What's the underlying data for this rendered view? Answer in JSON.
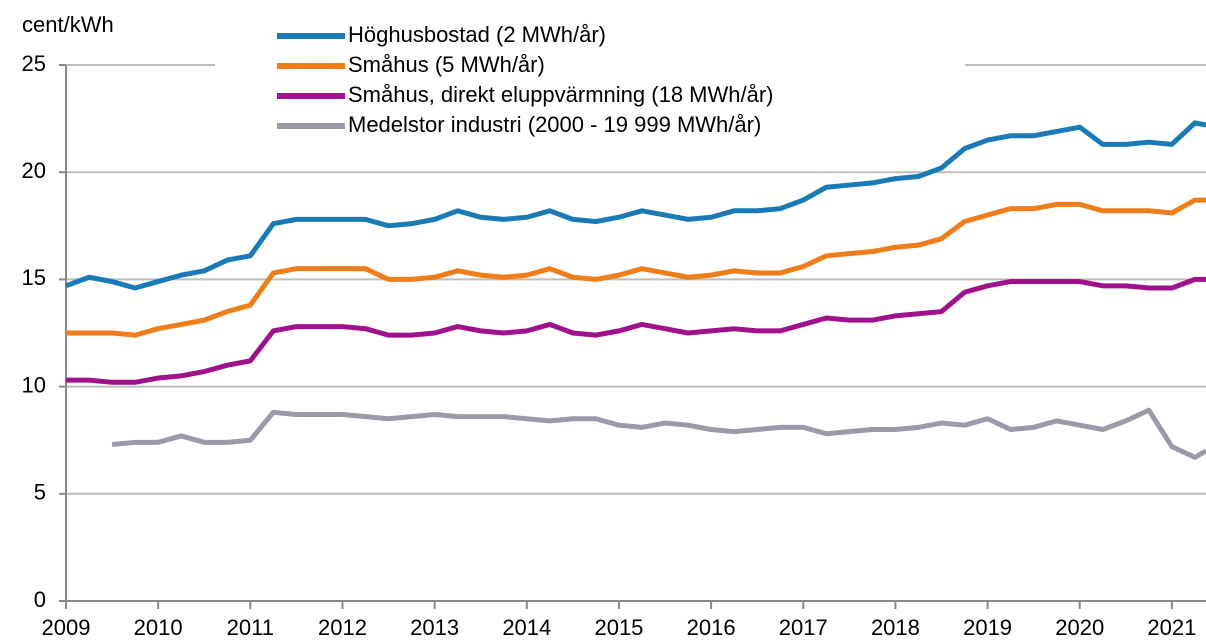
{
  "chart_data": {
    "type": "line",
    "y_label": "cent/kWh",
    "x": [
      2009,
      2009.25,
      2009.5,
      2009.75,
      2010,
      2010.25,
      2010.5,
      2010.75,
      2011,
      2011.25,
      2011.5,
      2011.75,
      2012,
      2012.25,
      2012.5,
      2012.75,
      2013,
      2013.25,
      2013.5,
      2013.75,
      2014,
      2014.25,
      2014.5,
      2014.75,
      2015,
      2015.25,
      2015.5,
      2015.75,
      2016,
      2016.25,
      2016.5,
      2016.75,
      2017,
      2017.25,
      2017.5,
      2017.75,
      2018,
      2018.25,
      2018.5,
      2018.75,
      2019,
      2019.25,
      2019.5,
      2019.75,
      2020,
      2020.25,
      2020.5,
      2020.75,
      2021,
      2021.25,
      2021.37
    ],
    "series": [
      {
        "name": "Höghusbostad (2 MWh/år)",
        "color": "#1a7ab5",
        "values": [
          14.7,
          15.1,
          14.9,
          14.6,
          14.9,
          15.2,
          15.4,
          15.9,
          16.1,
          17.6,
          17.8,
          17.8,
          17.8,
          17.8,
          17.5,
          17.6,
          17.8,
          18.2,
          17.9,
          17.8,
          17.9,
          18.2,
          17.8,
          17.7,
          17.9,
          18.2,
          18.0,
          17.8,
          17.9,
          18.2,
          18.2,
          18.3,
          18.7,
          19.3,
          19.4,
          19.5,
          19.7,
          19.8,
          20.2,
          21.1,
          21.5,
          21.7,
          21.7,
          21.9,
          22.1,
          21.3,
          21.3,
          21.4,
          21.3,
          22.3,
          22.2
        ]
      },
      {
        "name": "Småhus (5 MWh/år)",
        "color": "#ef7d1a",
        "values": [
          12.5,
          12.5,
          12.5,
          12.4,
          12.7,
          12.9,
          13.1,
          13.5,
          13.8,
          15.3,
          15.5,
          15.5,
          15.5,
          15.5,
          15.0,
          15.0,
          15.1,
          15.4,
          15.2,
          15.1,
          15.2,
          15.5,
          15.1,
          15.0,
          15.2,
          15.5,
          15.3,
          15.1,
          15.2,
          15.4,
          15.3,
          15.3,
          15.6,
          16.1,
          16.2,
          16.3,
          16.5,
          16.6,
          16.9,
          17.7,
          18.0,
          18.3,
          18.3,
          18.5,
          18.5,
          18.2,
          18.2,
          18.2,
          18.1,
          18.7,
          18.7
        ]
      },
      {
        "name": "Småhus, direkt eluppvärmning (18 MWh/år)",
        "color": "#a0128c",
        "values": [
          10.3,
          10.3,
          10.2,
          10.2,
          10.4,
          10.5,
          10.7,
          11.0,
          11.2,
          12.6,
          12.8,
          12.8,
          12.8,
          12.7,
          12.4,
          12.4,
          12.5,
          12.8,
          12.6,
          12.5,
          12.6,
          12.9,
          12.5,
          12.4,
          12.6,
          12.9,
          12.7,
          12.5,
          12.6,
          12.7,
          12.6,
          12.6,
          12.9,
          13.2,
          13.1,
          13.1,
          13.3,
          13.4,
          13.5,
          14.4,
          14.7,
          14.9,
          14.9,
          14.9,
          14.9,
          14.7,
          14.7,
          14.6,
          14.6,
          15.0,
          15.0
        ]
      },
      {
        "name": "Medelstor industri (2000 - 19 999 MWh/år)",
        "color": "#9c9aaa",
        "values": [
          null,
          null,
          7.3,
          7.4,
          7.4,
          7.7,
          7.4,
          7.4,
          7.5,
          8.8,
          8.7,
          8.7,
          8.7,
          8.6,
          8.5,
          8.6,
          8.7,
          8.6,
          8.6,
          8.6,
          8.5,
          8.4,
          8.5,
          8.5,
          8.2,
          8.1,
          8.3,
          8.2,
          8.0,
          7.9,
          8.0,
          8.1,
          8.1,
          7.8,
          7.9,
          8.0,
          8.0,
          8.1,
          8.3,
          8.2,
          8.5,
          8.0,
          8.1,
          8.4,
          8.2,
          8.0,
          8.4,
          8.9,
          7.2,
          6.7,
          7.0
        ]
      }
    ],
    "xlim": [
      2009,
      2021.37
    ],
    "xticks": [
      2009,
      2010,
      2011,
      2012,
      2013,
      2014,
      2015,
      2016,
      2017,
      2018,
      2019,
      2020,
      2021
    ],
    "ylim": [
      0,
      25
    ],
    "yticks": [
      0,
      5,
      10,
      15,
      20,
      25
    ],
    "grid": true,
    "legend": "top"
  }
}
